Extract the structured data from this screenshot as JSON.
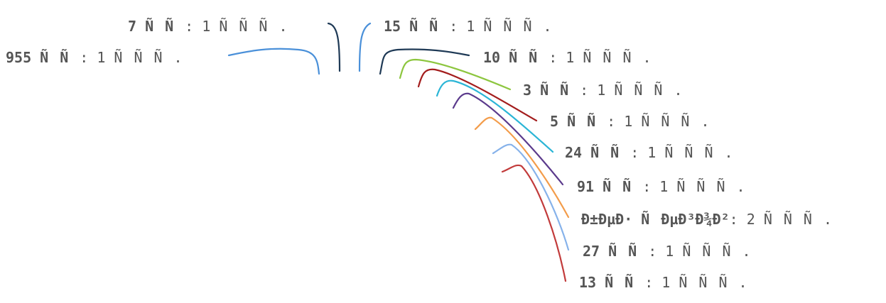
{
  "chart_data": {
    "type": "pie",
    "title": "",
    "slices": [
      {
        "label": "7 ÑÑ",
        "value_text": ": 1 ÑÑÑ.",
        "value": 1,
        "color": "#1f3a56"
      },
      {
        "label": "955 ÑÑ",
        "value_text": ": 1 ÑÑÑ.",
        "value": 1,
        "color": "#4a90d9"
      },
      {
        "label": "15 ÑÑ",
        "value_text": ": 1 ÑÑÑ.",
        "value": 1,
        "color": "#4a90d9"
      },
      {
        "label": "10 ÑÑ",
        "value_text": ": 1 ÑÑÑ.",
        "value": 1,
        "color": "#1f3a56"
      },
      {
        "label": "3 ÑÑ",
        "value_text": ": 1 ÑÑÑ.",
        "value": 1,
        "color": "#8dc63f"
      },
      {
        "label": "5 ÑÑ",
        "value_text": ": 1 ÑÑÑ.",
        "value": 1,
        "color": "#a31d1d"
      },
      {
        "label": "24 ÑÑ",
        "value_text": ": 1 ÑÑÑ.",
        "value": 1,
        "color": "#2bb5d6"
      },
      {
        "label": "91 ÑÑ",
        "value_text": ": 1 ÑÑÑ.",
        "value": 1,
        "color": "#5b3a8c"
      },
      {
        "label": "Ð±ÐµÐ· ÑÐµÐ³Ð¾Ð²",
        "value_text": ": 2 ÑÑÑ.",
        "value": 2,
        "color": "#f39c4a"
      },
      {
        "label": "27 ÑÑ",
        "value_text": ": 1 ÑÑÑ.",
        "value": 1,
        "color": "#86b2ea"
      },
      {
        "label": "13 ÑÑ",
        "value_text": ": 1 ÑÑÑ.",
        "value": 1,
        "color": "#c23b3b"
      }
    ]
  }
}
